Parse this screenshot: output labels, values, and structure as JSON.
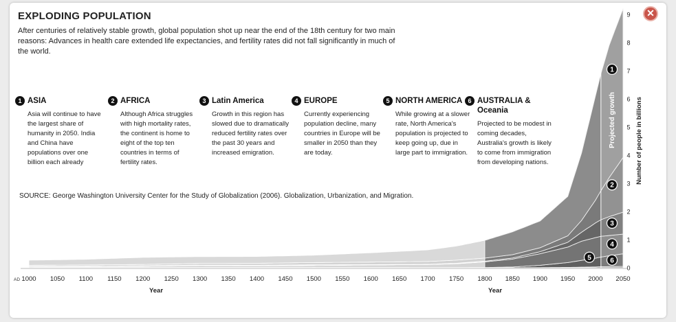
{
  "title": "EXPLODING POPULATION",
  "intro": "After centuries of relatively stable growth, global population shot up near the end of the 18th century for two main reasons:  Advances in health care extended life expectancies, and fertility rates did not fall significantly in much of the world.",
  "close_label": "✕",
  "regions": [
    {
      "num": "1",
      "name": "ASIA",
      "text": "Asia will continue to have the largest share of humanity in 2050. India and China have populations over one billion each already"
    },
    {
      "num": "2",
      "name": "AFRICA",
      "text": "Although Africa struggles with high mortality rates, the continent is home to eight of the top ten countries in terms of fertility rates."
    },
    {
      "num": "3",
      "name": "Latin America",
      "text": "Growth in this region has slowed due to dramatically reduced fertility rates over the past 30 years and increased emigration."
    },
    {
      "num": "4",
      "name": "EUROPE",
      "text": "Currently experiencing population decline, many countries in Europe will be smaller in 2050 than they are today."
    },
    {
      "num": "5",
      "name": "NORTH AMERICA",
      "text": "While growing at a slower rate, North America's population is projected to keep going up, due in large part to immigration."
    },
    {
      "num": "6",
      "name": "AUSTRALIA & Oceania",
      "text": "Projected to be modest in coming decades, Australia's growth is likely to come from immigration from developing nations."
    }
  ],
  "source": "SOURCE: George Washington University Center for the Study of Globalization (2006). Globalization, Urbanization, and Migration.",
  "chart_data": {
    "type": "area",
    "stacked": true,
    "xlabel": "Year",
    "ylabel": "Number of people in billions",
    "x_ticks_left": [
      1000,
      1050,
      1100,
      1150,
      1200,
      1250,
      1300,
      1350,
      1400,
      1450,
      1500,
      1550,
      1600,
      1650,
      1700,
      1750
    ],
    "x_ticks_right": [
      1800,
      1850,
      1900,
      1950,
      2000,
      2050
    ],
    "axis_prefix": "AD",
    "y_ticks": [
      0,
      1,
      2,
      3,
      4,
      5,
      6,
      7,
      8,
      9
    ],
    "ylim": [
      0,
      9
    ],
    "projection_label": "Projected growth",
    "projection_start": 2010,
    "years": [
      1000,
      1100,
      1200,
      1300,
      1400,
      1500,
      1600,
      1700,
      1750,
      1800,
      1850,
      1900,
      1950,
      1975,
      2000,
      2010,
      2025,
      2050
    ],
    "series": [
      {
        "num": "6",
        "values": [
          0.001,
          0.001,
          0.002,
          0.002,
          0.002,
          0.002,
          0.002,
          0.002,
          0.002,
          0.002,
          0.002,
          0.006,
          0.013,
          0.021,
          0.03,
          0.036,
          0.042,
          0.046
        ]
      },
      {
        "num": "5",
        "values": [
          0.005,
          0.006,
          0.007,
          0.008,
          0.008,
          0.009,
          0.008,
          0.002,
          0.002,
          0.007,
          0.026,
          0.082,
          0.172,
          0.243,
          0.31,
          0.345,
          0.385,
          0.45
        ]
      },
      {
        "num": "4",
        "values": [
          0.03,
          0.035,
          0.045,
          0.07,
          0.06,
          0.07,
          0.09,
          0.11,
          0.14,
          0.2,
          0.28,
          0.41,
          0.55,
          0.68,
          0.73,
          0.735,
          0.72,
          0.7
        ]
      },
      {
        "num": "3",
        "values": [
          0.012,
          0.013,
          0.014,
          0.015,
          0.02,
          0.025,
          0.012,
          0.01,
          0.016,
          0.024,
          0.038,
          0.074,
          0.17,
          0.32,
          0.52,
          0.59,
          0.67,
          0.78
        ]
      },
      {
        "num": "2",
        "values": [
          0.04,
          0.045,
          0.05,
          0.06,
          0.07,
          0.08,
          0.09,
          0.1,
          0.11,
          0.11,
          0.12,
          0.14,
          0.23,
          0.42,
          0.81,
          1.03,
          1.39,
          1.94
        ]
      },
      {
        "num": "1",
        "values": [
          0.18,
          0.2,
          0.25,
          0.24,
          0.24,
          0.26,
          0.33,
          0.41,
          0.5,
          0.63,
          0.81,
          0.95,
          1.4,
          2.4,
          3.7,
          4.16,
          4.7,
          5.29
        ]
      }
    ]
  }
}
